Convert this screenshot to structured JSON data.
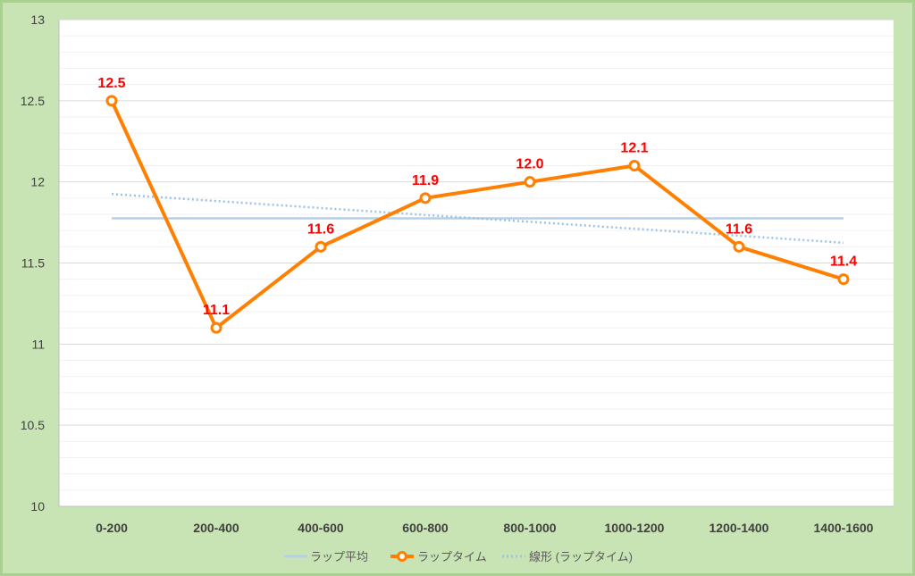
{
  "chart_data": {
    "type": "line",
    "categories": [
      "0-200",
      "200-400",
      "400-600",
      "600-800",
      "800-1000",
      "1000-1200",
      "1200-1400",
      "1400-1600"
    ],
    "series": [
      {
        "name": "ラップ平均",
        "values": [
          11.775,
          11.775,
          11.775,
          11.775,
          11.775,
          11.775,
          11.775,
          11.775
        ],
        "color": "#b4cfe9",
        "style": "solid"
      },
      {
        "name": "ラップタイム",
        "values": [
          12.5,
          11.1,
          11.6,
          11.9,
          12.0,
          12.1,
          11.6,
          11.4
        ],
        "labels": [
          "12.5",
          "11.1",
          "11.6",
          "11.9",
          "12.0",
          "12.1",
          "11.6",
          "11.4"
        ],
        "color": "#ff7f00",
        "marker": "circle"
      },
      {
        "name": "線形 (ラップタイム)",
        "values": [
          11.925,
          11.882,
          11.839,
          11.796,
          11.754,
          11.711,
          11.668,
          11.625
        ],
        "color": "#9dc3e6",
        "style": "dotted"
      }
    ],
    "y_ticks": [
      "10",
      "10.5",
      "11",
      "11.5",
      "12",
      "12.5",
      "13"
    ],
    "ylim": [
      10,
      13
    ],
    "grid": true,
    "legend_position": "bottom"
  }
}
